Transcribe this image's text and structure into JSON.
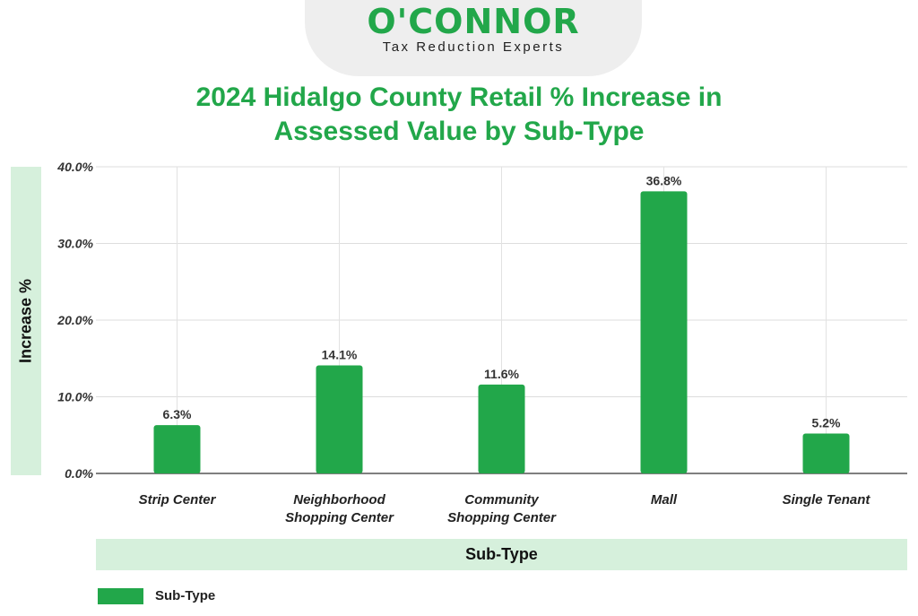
{
  "logo": {
    "brand": "O'CONNOR",
    "tagline": "Tax Reduction Experts"
  },
  "chart_data": {
    "type": "bar",
    "title_lines": [
      "2024 Hidalgo County Retail % Increase in",
      "Assessed Value by Sub-Type"
    ],
    "xlabel": "Sub-Type",
    "ylabel": "Increase %",
    "categories": [
      [
        "Strip Center"
      ],
      [
        "Neighborhood",
        "Shopping Center"
      ],
      [
        "Community",
        "Shopping Center"
      ],
      [
        "Mall"
      ],
      [
        "Single Tenant"
      ]
    ],
    "series": [
      {
        "name": "Sub-Type",
        "values": [
          6.3,
          14.1,
          11.6,
          36.8,
          5.2
        ],
        "labels": [
          "6.3%",
          "14.1%",
          "11.6%",
          "36.8%",
          "5.2%"
        ]
      }
    ],
    "yticks": [
      0,
      10,
      20,
      30,
      40
    ],
    "ytick_labels": [
      "0.0%",
      "10.0%",
      "20.0%",
      "30.0%",
      "40.0%"
    ],
    "ylim": [
      0,
      40
    ],
    "grid": true,
    "legend": "bottom-left",
    "colors": {
      "bar": "#22a74a",
      "band": "#d6f0dc",
      "title": "#22a74a"
    }
  }
}
